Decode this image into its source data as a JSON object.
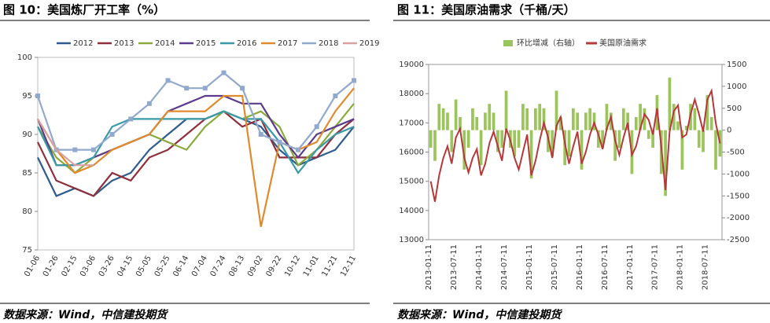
{
  "chart_data": [
    {
      "type": "line",
      "title": "图 10：美国炼厂开工率（%）",
      "source": "数据来源：Wind，中信建投期货",
      "categories": [
        "01-06",
        "01-26",
        "02-15",
        "03-06",
        "03-26",
        "04-15",
        "05-05",
        "05-25",
        "06-14",
        "07-04",
        "07-24",
        "08-13",
        "09-02",
        "09-22",
        "10-12",
        "11-01",
        "11-21",
        "12-11"
      ],
      "series": [
        {
          "name": "2012",
          "color": "#2f5b8f",
          "values": [
            87,
            82,
            83,
            82,
            84,
            85,
            88,
            90,
            92,
            92,
            93,
            92,
            91,
            88,
            86,
            87,
            88,
            91
          ]
        },
        {
          "name": "2013",
          "color": "#8e2f3c",
          "values": [
            89,
            84,
            83,
            82,
            85,
            84,
            87,
            88,
            90,
            92,
            93,
            91,
            92,
            87,
            87,
            87,
            90,
            92
          ]
        },
        {
          "name": "2014",
          "color": "#8aab3c",
          "values": [
            91,
            87,
            85,
            87,
            88,
            89,
            90,
            89,
            88,
            91,
            93,
            92,
            93,
            91,
            86,
            88,
            91,
            94
          ]
        },
        {
          "name": "2015",
          "color": "#5d3b8c",
          "values": [
            92,
            86,
            86,
            87,
            88,
            89,
            90,
            93,
            94,
            95,
            95,
            94,
            94,
            90,
            87,
            90,
            91,
            92
          ]
        },
        {
          "name": "2016",
          "color": "#3a9aa8",
          "values": [
            91,
            86,
            86,
            87,
            91,
            92,
            92,
            92,
            92,
            92,
            93,
            92,
            92,
            89,
            85,
            88,
            90,
            91
          ]
        },
        {
          "name": "2017",
          "color": "#e08a2e",
          "values": [
            92,
            88,
            85,
            86,
            88,
            89,
            90,
            93,
            93,
            93,
            95,
            95,
            78,
            89,
            88,
            89,
            93,
            96
          ]
        },
        {
          "name": "2018",
          "color": "#91a9cc",
          "marker": "square",
          "values": [
            95,
            88,
            88,
            88,
            90,
            92,
            94,
            97,
            96,
            96,
            98,
            96,
            90,
            89,
            88,
            91,
            95,
            97
          ]
        },
        {
          "name": "2019",
          "color": "#d9a0a0",
          "values": [
            92,
            88,
            86,
            86,
            null,
            null,
            null,
            null,
            null,
            null,
            null,
            null,
            null,
            null,
            null,
            null,
            null,
            null
          ]
        }
      ],
      "ylim": [
        75,
        100
      ],
      "yticks": [
        75,
        80,
        85,
        90,
        95,
        100
      ],
      "legend": "top"
    },
    {
      "type": "bar-line",
      "title": "图 11：美国原油需求（千桶/天）",
      "source": "数据来源：Wind，中信建投期货",
      "categories": [
        "2013-01-11",
        null,
        null,
        null,
        null,
        null,
        "2013-07-11",
        null,
        null,
        null,
        null,
        null,
        "2014-01-11",
        null,
        null,
        null,
        null,
        null,
        "2014-07-11",
        null,
        null,
        null,
        null,
        null,
        "2015-01-11",
        null,
        null,
        null,
        null,
        null,
        "2015-07-11",
        null,
        null,
        null,
        null,
        null,
        "2016-01-11",
        null,
        null,
        null,
        null,
        null,
        "2016-07-11",
        null,
        null,
        null,
        null,
        null,
        "2017-01-11",
        null,
        null,
        null,
        null,
        null,
        "2017-07-11",
        null,
        null,
        null,
        null,
        null,
        "2018-01-11",
        null,
        null,
        null,
        null,
        null,
        "2018-07-11",
        null,
        null,
        null
      ],
      "series": [
        {
          "name": "环比增减（右轴）",
          "type": "bar",
          "axis": "y2",
          "color": "#9cc45c",
          "values": [
            -400,
            -700,
            600,
            500,
            400,
            -500,
            700,
            300,
            -900,
            -400,
            500,
            300,
            -800,
            400,
            600,
            400,
            -500,
            -400,
            900,
            -400,
            -600,
            -400,
            600,
            500,
            -1100,
            500,
            600,
            500,
            -500,
            -600,
            900,
            300,
            -800,
            -600,
            500,
            400,
            -900,
            400,
            500,
            400,
            -400,
            -400,
            600,
            400,
            -700,
            -400,
            500,
            400,
            -1000,
            300,
            600,
            500,
            -200,
            -400,
            800,
            -1000,
            -1500,
            1200,
            600,
            200,
            -900,
            100,
            600,
            500,
            -400,
            -500,
            800,
            300,
            -900,
            -600
          ]
        },
        {
          "name": "美国原油需求",
          "type": "line",
          "color": "#b5393a",
          "values": [
            15000,
            14300,
            15200,
            15800,
            16200,
            15600,
            16500,
            16800,
            15800,
            15300,
            15800,
            16100,
            15200,
            15600,
            16300,
            16700,
            16200,
            15700,
            16800,
            16400,
            15800,
            15400,
            16000,
            16600,
            15200,
            15700,
            16400,
            17000,
            16500,
            15800,
            16900,
            17200,
            16300,
            15600,
            16200,
            16700,
            15600,
            16000,
            16600,
            17000,
            16600,
            16100,
            16800,
            17200,
            16400,
            15900,
            16500,
            17000,
            15900,
            16200,
            16800,
            17300,
            17100,
            16600,
            17500,
            16200,
            14700,
            16700,
            17400,
            17600,
            16500,
            16600,
            17300,
            17800,
            17300,
            16700,
            17800,
            18100,
            17000,
            16300
          ]
        }
      ],
      "ylim": [
        13000,
        19000
      ],
      "yticks": [
        13000,
        14000,
        15000,
        16000,
        17000,
        18000,
        19000
      ],
      "y2lim": [
        -2500,
        1500
      ],
      "y2ticks": [
        -2500,
        -2000,
        -1500,
        -1000,
        -500,
        0,
        500,
        1000,
        1500
      ],
      "legend": "top"
    }
  ]
}
